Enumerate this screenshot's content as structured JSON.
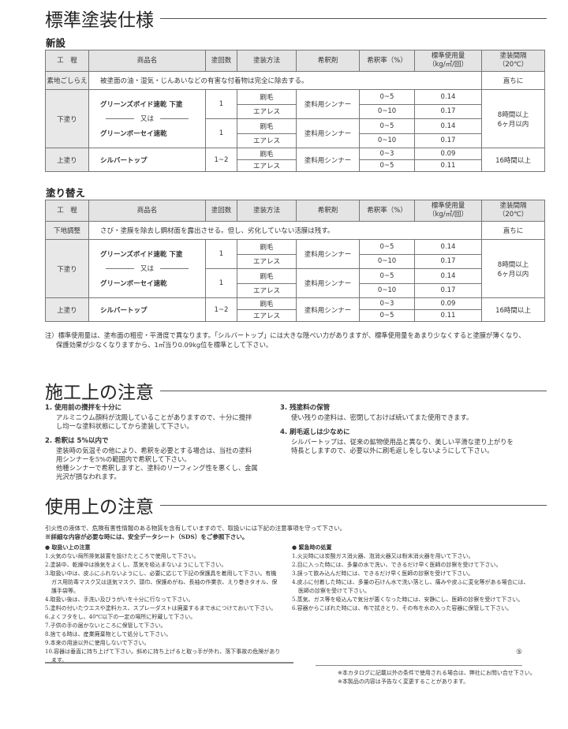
{
  "spec": {
    "title": "標準塗装仕様",
    "headers": [
      "工　程",
      "商品名",
      "塗回数",
      "塗装方法",
      "希釈剤",
      "希釈率（%）",
      "標準使用量\n（kg/㎡/回）",
      "塗装間隔\n（20℃）"
    ],
    "sections": [
      {
        "label": "新設",
        "prep": {
          "process": "素地ごしらえ",
          "text": "被塗面の油・湿気・じんあいなどの有害な付着物は完全に除去する。",
          "interval": "直ちに"
        }
      },
      {
        "label": "塗り替え",
        "prep": {
          "process": "下地調整",
          "text": "さび・塗膜を除去し鋼材面を露出させる。但し、劣化していない活膜は残す。",
          "interval": "直ちに"
        }
      }
    ],
    "undercoat": {
      "process": "下塗り",
      "or": "又は",
      "interval": "8時間以上\n6ヶ月以内",
      "products": [
        {
          "name": "グリーンズボイド速乾 下塗",
          "coats": "1",
          "thinner": "塗料用シンナー",
          "methods": [
            {
              "method": "刷毛",
              "ratio": "0~5",
              "amount": "0.14"
            },
            {
              "method": "エアレス",
              "ratio": "0~10",
              "amount": "0.17"
            }
          ]
        },
        {
          "name": "グリーンボーセイ速乾",
          "coats": "1",
          "thinner": "塗料用シンナー",
          "methods": [
            {
              "method": "刷毛",
              "ratio": "0~5",
              "amount": "0.14"
            },
            {
              "method": "エアレス",
              "ratio": "0~10",
              "amount": "0.17"
            }
          ]
        }
      ]
    },
    "topcoat": {
      "process": "上塗り",
      "interval": "16時間以上",
      "products": [
        {
          "name": "シルバートップ",
          "coats": "1~2",
          "thinner": "塗料用シンナー",
          "methods": [
            {
              "method": "刷毛",
              "ratio": "0~3",
              "amount": "0.09"
            },
            {
              "method": "エアレス",
              "ratio": "0~5",
              "amount": "0.11"
            }
          ]
        }
      ]
    },
    "note": [
      "注）標準使用量は、塗布面の粗密・平滑度で異なります。「シルバートップ」には大きな隠ぺい力がありますが、標準使用量をあまり少なくすると塗膜が薄くなり、",
      "保護効果が少なくなりますから、1㎡当り0.09kg位を標準として下さい。"
    ]
  },
  "construction": {
    "title": "施工上の注意",
    "items": [
      {
        "title": "1. 使用前の攪拌を十分に",
        "body": "アルミニウム顔料が沈殿していることがありますので、十分に攪拌し均一な塗料状態にしてから塗装して下さい。"
      },
      {
        "title": "2. 希釈は 5%以内で",
        "body": "塗装時の気温その他により、希釈を必要とする場合は、当社の塗料用シンナーを5%の範囲内で希釈して下さい。\n他種シンナーで希釈しますと、塗料のリーフィング性を悪くし、金属光沢が損なわれます。"
      },
      {
        "title": "3. 残塗料の保管",
        "body": "使い残りの塗料は、密閉しておけば続いてまた使用できます。"
      },
      {
        "title": "4. 刷毛返しは少なめに",
        "body": "シルバートップは、従来の鉱物使用品と異なり、美しい平滑な塗り上がりを特長としますので、必要以外に刷毛返しをしないようにして下さい。"
      }
    ]
  },
  "usage": {
    "title": "使用上の注意",
    "intro": [
      "引火性の液体で、危険有害性情報のある物質を含有していますので、取扱いには下記の注意事項を守って下さい。",
      "※詳細な内容が必要な時には、安全データシート（SDS）をご参照下さい。"
    ],
    "handling": {
      "title": "● 取扱い上の注意",
      "items": [
        "1.火気のない局所排気装置を設けたところで使用して下さい。",
        "2.塗装中、乾燥中は換気をよくし、蒸気を吸込まないようにして下さい。",
        "3.取扱い中は、皮ふにふれないようにし、必要に応じて下記の保護具を着用して下さい。有機ガス用防毒マスク又は送気マスク、頭巾、保護めがね、長袖の作業衣、えり巻きタオル、保護手袋等。",
        "4.取扱い後は、手洗い及びうがいを十分に行なって下さい。",
        "5.塗料の付いたウエスや塗料カス、スプレーダストは廃棄するまで水につけておいて下さい。",
        "6.よくフタをし、40℃以下の一定の場所に貯蔵して下さい。",
        "7.子供の手の届かないところに保管して下さい。",
        "8.捨てる時は、産業廃棄物として処分して下さい。",
        "9.本来の用途以外に使用しないで下さい。",
        "10.容器は垂直に持ち上げて下さい。斜めに持ち上げると取っ手が外れ、落下事故の危険があります。"
      ]
    },
    "emergency": {
      "title": "● 緊急時の処置",
      "items": [
        "1.火災時には炭酸ガス消火器、泡消火器又は粉末消火器を用いて下さい。",
        "2.目に入った時には、多量の水で洗い、できるだけ早く医師の診察を受けて下さい。",
        "3.誤って飲み込んだ時には、できるだけ早く医師の診察を受けて下さい。",
        "4.皮ふに付着した時には、多量の石けん水で洗い落とし、痛みや皮ふに変化等がある場合には、医師の診察を受けて下さい。",
        "5.蒸気、ガス等を吸込んで気分が悪くなった時には、安静にし、医師の診察を受けて下さい。",
        "6.容器からこぼれた時には、布で拭きとり、その布を水の入った容器に保管して下さい。"
      ]
    }
  },
  "page_number": "⑤",
  "footer": [
    "※本カタログに記載以外の条件で使用される場合は、弊社にお問い合せ下さい。",
    "※本製品の内容は予告なく変更することがあります。"
  ]
}
